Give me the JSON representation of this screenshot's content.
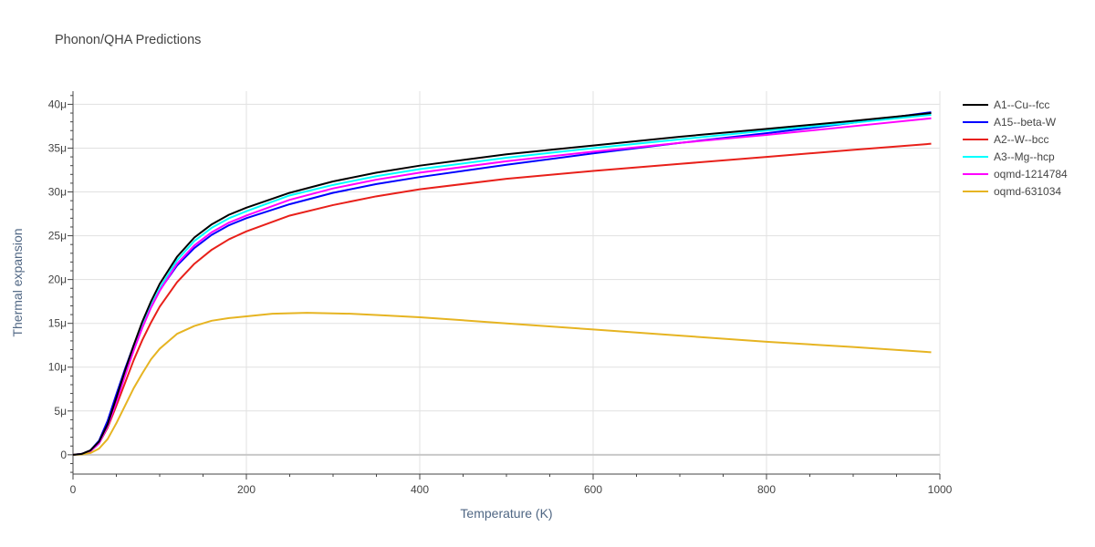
{
  "chart_data": {
    "type": "line",
    "title": "Phonon/QHA Predictions",
    "xlabel": "Temperature (K)",
    "ylabel": "Thermal expansion",
    "xlim": [
      0,
      1000
    ],
    "ylim": [
      -2.2e-06,
      4.15e-05
    ],
    "x_ticks": [
      {
        "v": 0,
        "label": "0"
      },
      {
        "v": 200,
        "label": "200"
      },
      {
        "v": 400,
        "label": "400"
      },
      {
        "v": 600,
        "label": "600"
      },
      {
        "v": 800,
        "label": "800"
      },
      {
        "v": 1000,
        "label": "1000"
      }
    ],
    "y_ticks": [
      {
        "v": 0,
        "label": "0"
      },
      {
        "v": 5e-06,
        "label": "5μ"
      },
      {
        "v": 1e-05,
        "label": "10μ"
      },
      {
        "v": 1.5e-05,
        "label": "15μ"
      },
      {
        "v": 2e-05,
        "label": "20μ"
      },
      {
        "v": 2.5e-05,
        "label": "25μ"
      },
      {
        "v": 3e-05,
        "label": "30μ"
      },
      {
        "v": 3.5e-05,
        "label": "35μ"
      },
      {
        "v": 4e-05,
        "label": "40μ"
      }
    ],
    "grid": true,
    "legend_position": "top-right",
    "series": [
      {
        "name": "A1--Cu--fcc",
        "color": "#000000",
        "x": [
          0,
          10,
          20,
          30,
          40,
          50,
          60,
          70,
          80,
          90,
          100,
          120,
          140,
          160,
          180,
          200,
          250,
          300,
          350,
          400,
          500,
          600,
          700,
          800,
          900,
          990
        ],
        "y": [
          0,
          1e-07,
          5e-07,
          1.5e-06,
          3.5e-06,
          6.5e-06,
          9.6e-06,
          1.25e-05,
          1.52e-05,
          1.75e-05,
          1.95e-05,
          2.26e-05,
          2.48e-05,
          2.63e-05,
          2.74e-05,
          2.82e-05,
          2.99e-05,
          3.12e-05,
          3.22e-05,
          3.3e-05,
          3.43e-05,
          3.53e-05,
          3.63e-05,
          3.72e-05,
          3.81e-05,
          3.9e-05
        ]
      },
      {
        "name": "A15--beta-W",
        "color": "#0000ff",
        "x": [
          0,
          10,
          20,
          30,
          40,
          50,
          60,
          70,
          80,
          90,
          100,
          120,
          140,
          160,
          180,
          200,
          250,
          300,
          350,
          400,
          500,
          600,
          700,
          800,
          900,
          990
        ],
        "y": [
          0,
          1e-07,
          5e-07,
          1.6e-06,
          3.9e-06,
          6.9e-06,
          9.8e-06,
          1.25e-05,
          1.49e-05,
          1.7e-05,
          1.88e-05,
          2.16e-05,
          2.36e-05,
          2.51e-05,
          2.62e-05,
          2.7e-05,
          2.86e-05,
          2.99e-05,
          3.09e-05,
          3.17e-05,
          3.31e-05,
          3.44e-05,
          3.56e-05,
          3.67e-05,
          3.79e-05,
          3.91e-05
        ]
      },
      {
        "name": "A2--W--bcc",
        "color": "#e8201a",
        "x": [
          0,
          10,
          20,
          30,
          40,
          50,
          60,
          70,
          80,
          90,
          100,
          120,
          140,
          160,
          180,
          200,
          250,
          300,
          350,
          400,
          500,
          600,
          700,
          800,
          900,
          990
        ],
        "y": [
          0,
          1e-07,
          4e-07,
          1.3e-06,
          3.1e-06,
          5.6e-06,
          8.2e-06,
          1.08e-05,
          1.31e-05,
          1.51e-05,
          1.69e-05,
          1.97e-05,
          2.18e-05,
          2.34e-05,
          2.46e-05,
          2.55e-05,
          2.73e-05,
          2.85e-05,
          2.95e-05,
          3.03e-05,
          3.15e-05,
          3.24e-05,
          3.32e-05,
          3.4e-05,
          3.48e-05,
          3.55e-05
        ]
      },
      {
        "name": "A3--Mg--hcp",
        "color": "#00ffff",
        "x": [
          0,
          10,
          20,
          30,
          40,
          50,
          60,
          70,
          80,
          90,
          100,
          120,
          140,
          160,
          180,
          200,
          250,
          300,
          350,
          400,
          500,
          600,
          700,
          800,
          900,
          990
        ],
        "y": [
          0,
          1e-07,
          4e-07,
          1.3e-06,
          3.3e-06,
          6.2e-06,
          9.2e-06,
          1.21e-05,
          1.47e-05,
          1.7e-05,
          1.9e-05,
          2.22e-05,
          2.44e-05,
          2.59e-05,
          2.7e-05,
          2.78e-05,
          2.96e-05,
          3.08e-05,
          3.18e-05,
          3.26e-05,
          3.39e-05,
          3.5e-05,
          3.6e-05,
          3.7e-05,
          3.79e-05,
          3.88e-05
        ]
      },
      {
        "name": "oqmd-1214784",
        "color": "#ff00ff",
        "x": [
          0,
          10,
          20,
          30,
          40,
          50,
          60,
          70,
          80,
          90,
          100,
          120,
          140,
          160,
          180,
          200,
          250,
          300,
          350,
          400,
          500,
          600,
          700,
          800,
          900,
          990
        ],
        "y": [
          0,
          1e-07,
          4e-07,
          1.3e-06,
          3.3e-06,
          6e-06,
          9e-06,
          1.19e-05,
          1.45e-05,
          1.68e-05,
          1.87e-05,
          2.18e-05,
          2.39e-05,
          2.54e-05,
          2.65e-05,
          2.73e-05,
          2.91e-05,
          3.04e-05,
          3.14e-05,
          3.22e-05,
          3.35e-05,
          3.46e-05,
          3.56e-05,
          3.65e-05,
          3.75e-05,
          3.84e-05
        ]
      },
      {
        "name": "oqmd-631034",
        "color": "#e6b422",
        "x": [
          0,
          10,
          20,
          30,
          40,
          50,
          60,
          70,
          80,
          90,
          100,
          120,
          140,
          160,
          180,
          200,
          230,
          270,
          320,
          360,
          400,
          500,
          600,
          700,
          800,
          900,
          990
        ],
        "y": [
          0,
          5e-08,
          2e-07,
          7e-07,
          1.8e-06,
          3.6e-06,
          5.6e-06,
          7.6e-06,
          9.3e-06,
          1.09e-05,
          1.21e-05,
          1.38e-05,
          1.47e-05,
          1.53e-05,
          1.56e-05,
          1.58e-05,
          1.61e-05,
          1.62e-05,
          1.61e-05,
          1.59e-05,
          1.57e-05,
          1.5e-05,
          1.43e-05,
          1.36e-05,
          1.29e-05,
          1.23e-05,
          1.17e-05
        ]
      }
    ]
  }
}
